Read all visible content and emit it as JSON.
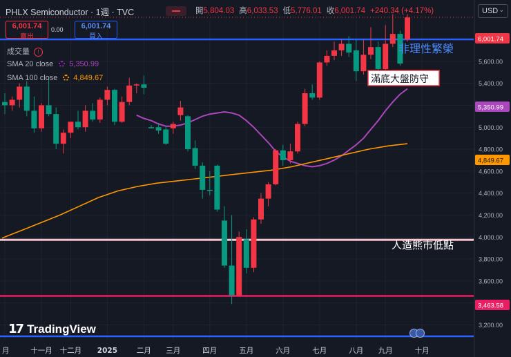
{
  "header": {
    "title": "PHLX Semiconductor · 1週 · TVC",
    "open_label": "開",
    "open": "5,804.03",
    "high_label": "高",
    "high": "6,033.53",
    "low_label": "低",
    "low": "5,776.01",
    "close_label": "收",
    "close": "6,001.74",
    "change": "+240.34 (+4.17%)",
    "currency": "USD"
  },
  "trade": {
    "sell_price": "6,001.74",
    "sell_label": "賣出",
    "spread": "0.00",
    "buy_price": "6,001.74",
    "buy_label": "買入"
  },
  "indicators": {
    "volume_label": "成交量",
    "sma20_label": "SMA 20 close",
    "sma20_value": "5,350.99",
    "sma100_label": "SMA 100 close",
    "sma100_value": "4,849.67"
  },
  "price_tags": {
    "last": "6,001.74",
    "sma20": "5,350.99",
    "sma100": "4,849.67",
    "low_line": "3,463.58"
  },
  "annotations": {
    "top_text": "非理性繁榮",
    "box_text": "滿底大盤防守",
    "mid_text": "人造熊市低點"
  },
  "watermark": "TradingView",
  "colors": {
    "up": "#f23645",
    "down": "#089981",
    "sma20": "#ab47bc",
    "sma100": "#ff9800",
    "blue_line": "#2962ff",
    "pink_line": "#f7c5d0",
    "red_line": "#e91e63"
  },
  "chart_data": {
    "type": "candlestick",
    "y_axis": {
      "min": 3150,
      "max": 6150,
      "ticks": [
        3200,
        3400,
        3600,
        3800,
        4000,
        4200,
        4400,
        4600,
        4800,
        5000,
        5200,
        5400,
        5600,
        5800
      ],
      "tick_labels": [
        "3,200.00",
        "3,400.00",
        "3,600.00",
        "3,800.00",
        "4,000.00",
        "4,200.00",
        "4,400.00",
        "4,600.00",
        "4,800.00",
        "5,000.00",
        "5,200.00",
        "5,400.00",
        "5,600.00",
        "5,800.00"
      ]
    },
    "x_axis": {
      "labels": [
        "月",
        "十一月",
        "十二月",
        "2025",
        "二月",
        "三月",
        "四月",
        "五月",
        "六月",
        "七月",
        "八月",
        "九月",
        "十月"
      ],
      "label_bar_index": [
        0,
        5,
        9,
        14,
        19,
        23,
        28,
        33,
        38,
        43,
        48,
        52,
        57
      ]
    },
    "candles": [
      {
        "o": 5230,
        "h": 5310,
        "l": 5120,
        "c": 5200
      },
      {
        "o": 5200,
        "h": 5280,
        "l": 5150,
        "c": 5250
      },
      {
        "o": 5250,
        "h": 5400,
        "l": 5180,
        "c": 5370
      },
      {
        "o": 5370,
        "h": 5420,
        "l": 5100,
        "c": 5150
      },
      {
        "o": 5150,
        "h": 5280,
        "l": 4950,
        "c": 4990
      },
      {
        "o": 4990,
        "h": 5220,
        "l": 4960,
        "c": 5200
      },
      {
        "o": 5200,
        "h": 5450,
        "l": 5100,
        "c": 5120
      },
      {
        "o": 5120,
        "h": 5180,
        "l": 4800,
        "c": 4850
      },
      {
        "o": 4850,
        "h": 4980,
        "l": 4760,
        "c": 4950
      },
      {
        "o": 4950,
        "h": 5050,
        "l": 4900,
        "c": 5050
      },
      {
        "o": 5050,
        "h": 5150,
        "l": 4980,
        "c": 5000
      },
      {
        "o": 5000,
        "h": 5200,
        "l": 4960,
        "c": 5150
      },
      {
        "o": 5150,
        "h": 5220,
        "l": 5050,
        "c": 5070
      },
      {
        "o": 5070,
        "h": 5270,
        "l": 5040,
        "c": 5250
      },
      {
        "o": 5250,
        "h": 5370,
        "l": 5200,
        "c": 5340
      },
      {
        "o": 5340,
        "h": 5350,
        "l": 5020,
        "c": 5050
      },
      {
        "o": 5050,
        "h": 5280,
        "l": 5040,
        "c": 5230
      },
      {
        "o": 5230,
        "h": 5450,
        "l": 5200,
        "c": 5380
      },
      {
        "o": 5380,
        "h": 5400,
        "l": 5310,
        "c": 5390
      },
      {
        "o": 5390,
        "h": 5470,
        "l": 5300,
        "c": 5360
      },
      {
        "o": 5000,
        "h": 5020,
        "l": 4990,
        "c": 4990
      },
      {
        "o": 5000,
        "h": 5040,
        "l": 4940,
        "c": 4970
      },
      {
        "o": 4980,
        "h": 5010,
        "l": 4840,
        "c": 4850
      },
      {
        "o": 4990,
        "h": 5050,
        "l": 4940,
        "c": 5030
      },
      {
        "o": 5110,
        "h": 5240,
        "l": 5060,
        "c": 5180
      },
      {
        "o": 5100,
        "h": 5110,
        "l": 4780,
        "c": 4800
      },
      {
        "o": 4810,
        "h": 4880,
        "l": 4620,
        "c": 4650
      },
      {
        "o": 4650,
        "h": 4680,
        "l": 4350,
        "c": 4430
      },
      {
        "o": 4430,
        "h": 4600,
        "l": 4380,
        "c": 4420
      },
      {
        "o": 4650,
        "h": 4660,
        "l": 4230,
        "c": 4250
      },
      {
        "o": 4150,
        "h": 4280,
        "l": 3720,
        "c": 3740
      },
      {
        "o": 3740,
        "h": 4200,
        "l": 3390,
        "c": 3470
      },
      {
        "o": 3470,
        "h": 4050,
        "l": 3460,
        "c": 4000
      },
      {
        "o": 3980,
        "h": 4070,
        "l": 3670,
        "c": 3720
      },
      {
        "o": 3720,
        "h": 4180,
        "l": 3680,
        "c": 4160
      },
      {
        "o": 4160,
        "h": 4400,
        "l": 4120,
        "c": 4350
      },
      {
        "o": 4350,
        "h": 4500,
        "l": 4280,
        "c": 4480
      },
      {
        "o": 4480,
        "h": 4800,
        "l": 4470,
        "c": 4790
      },
      {
        "o": 4790,
        "h": 4840,
        "l": 4650,
        "c": 4700
      },
      {
        "o": 4700,
        "h": 4850,
        "l": 4670,
        "c": 4780
      },
      {
        "o": 4780,
        "h": 5050,
        "l": 4760,
        "c": 5030
      },
      {
        "o": 5030,
        "h": 5350,
        "l": 5010,
        "c": 5310
      },
      {
        "o": 5310,
        "h": 5390,
        "l": 5250,
        "c": 5270
      },
      {
        "o": 5270,
        "h": 5600,
        "l": 5250,
        "c": 5590
      },
      {
        "o": 5590,
        "h": 5700,
        "l": 5560,
        "c": 5650
      },
      {
        "o": 5650,
        "h": 5780,
        "l": 5610,
        "c": 5700
      },
      {
        "o": 5700,
        "h": 5800,
        "l": 5650,
        "c": 5760
      },
      {
        "o": 5760,
        "h": 5830,
        "l": 5640,
        "c": 5680
      },
      {
        "o": 5700,
        "h": 5800,
        "l": 5420,
        "c": 5510
      },
      {
        "o": 5510,
        "h": 5800,
        "l": 5480,
        "c": 5660
      },
      {
        "o": 5660,
        "h": 5910,
        "l": 5620,
        "c": 5730
      },
      {
        "o": 5730,
        "h": 5780,
        "l": 5480,
        "c": 5530
      },
      {
        "o": 5530,
        "h": 5930,
        "l": 5500,
        "c": 5760
      },
      {
        "o": 5760,
        "h": 6030,
        "l": 5730,
        "c": 5850
      },
      {
        "o": 5850,
        "h": 5880,
        "l": 5560,
        "c": 5580
      },
      {
        "o": 5800,
        "h": 6030,
        "l": 5780,
        "c": 6000
      }
    ],
    "sma20": [
      5110,
      5080,
      5060,
      5030,
      5010,
      5010,
      5020,
      5040,
      5070,
      5100,
      5120,
      5130,
      5140,
      5130,
      5110,
      5060,
      5000,
      4930,
      4860,
      4780,
      4730,
      4690,
      4670,
      4650,
      4640,
      4650,
      4670,
      4700,
      4740,
      4790,
      4840,
      4900,
      4980,
      5060,
      5150,
      5230,
      5300,
      5350
    ],
    "sma100": [
      3990,
      4060,
      4130,
      4200,
      4280,
      4360,
      4420,
      4460,
      4490,
      4510,
      4530,
      4550,
      4570,
      4590,
      4610,
      4640,
      4680,
      4720,
      4760,
      4800,
      4830,
      4850
    ],
    "levels": [
      {
        "value": 5800
      },
      {
        "value": 3975
      },
      {
        "value": 3463.58
      }
    ],
    "last_price": 6001.74
  }
}
